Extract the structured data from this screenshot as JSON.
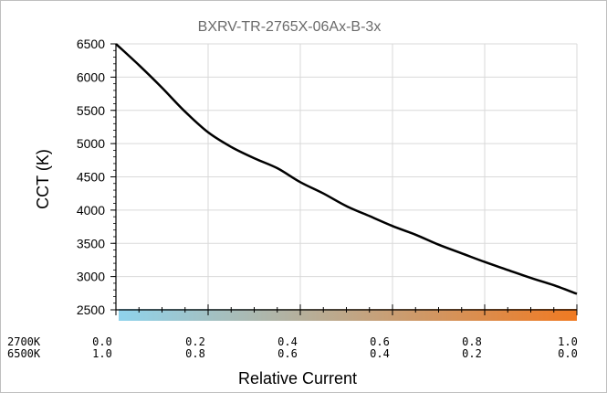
{
  "chart_data": {
    "type": "line",
    "title": "BXRV-TR-2765X-06Ax-B-3x",
    "xlabel": "Relative Current",
    "ylabel": "CCT (K)",
    "xlim": [
      0,
      1
    ],
    "ylim": [
      2500,
      6500
    ],
    "yticks": [
      2500,
      3000,
      3500,
      4000,
      4500,
      5000,
      5500,
      6000,
      6500
    ],
    "grid": true,
    "gradient_colors": [
      "#8fd3ec",
      "#f07a22"
    ],
    "x_row1": {
      "prefix": "2700K",
      "labels": [
        "0.0",
        "0.2",
        "0.4",
        "0.6",
        "0.8",
        "1.0"
      ]
    },
    "x_row2": {
      "prefix": "6500K",
      "labels": [
        "1.0",
        "0.8",
        "0.6",
        "0.4",
        "0.2",
        "0.0"
      ]
    },
    "series": [
      {
        "x": [
          0.0,
          0.05,
          0.1,
          0.15,
          0.2,
          0.25,
          0.3,
          0.35,
          0.4,
          0.45,
          0.5,
          0.55,
          0.6,
          0.65,
          0.7,
          0.75,
          0.8,
          0.85,
          0.9,
          0.95,
          1.0
        ],
        "y": [
          6500,
          6180,
          5840,
          5480,
          5170,
          4950,
          4780,
          4630,
          4420,
          4250,
          4060,
          3910,
          3760,
          3630,
          3480,
          3350,
          3220,
          3100,
          2980,
          2870,
          2740
        ],
        "color": "#000000"
      }
    ]
  }
}
